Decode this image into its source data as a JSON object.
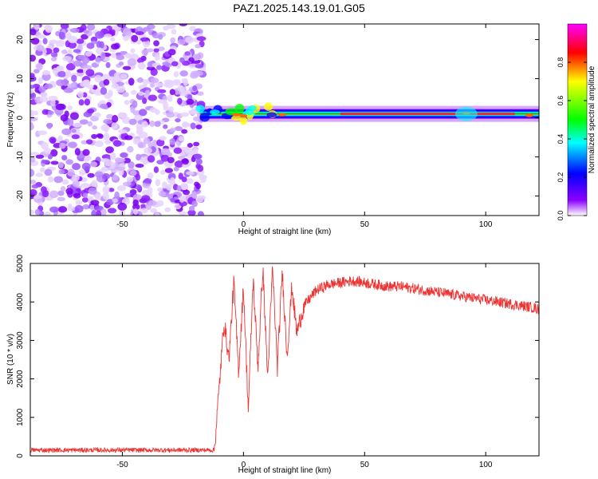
{
  "figure": {
    "title": "PAZ1.2025.143.19.01.G05"
  },
  "chart_data": [
    {
      "type": "heatmap",
      "title": "PAZ1.2025.143.19.01.G05",
      "xlabel": "Height of straight line (km)",
      "ylabel": "Frequency (Hz)",
      "xlim": [
        -88,
        122
      ],
      "ylim": [
        -25,
        24
      ],
      "xticks": [
        -50,
        0,
        50,
        100
      ],
      "yticks": [
        -20,
        -10,
        0,
        10,
        20
      ],
      "grid": false,
      "regions": [
        {
          "name": "noise",
          "x_range": [
            -88,
            -18
          ],
          "y_range": [
            -25,
            24
          ],
          "amplitude": [
            0.0,
            0.25
          ]
        },
        {
          "name": "signal band",
          "x_range": [
            -18,
            122
          ],
          "center_frequency_hz": 1,
          "peak_amplitude": 1.0
        }
      ],
      "colorbar": {
        "label": "Normalized spectral amplitude",
        "range": [
          0.0,
          1.0
        ],
        "ticks": [
          0.0,
          0.2,
          0.4,
          0.6,
          0.8
        ],
        "tick_labels": [
          "0.0",
          "0.2",
          "0.4",
          "0.6",
          "0.8"
        ],
        "colormap": "rainbow"
      }
    },
    {
      "type": "line",
      "xlabel": "Height of straight line (km)",
      "ylabel": "SNR (10 * v/v)",
      "xlim": [
        -88,
        122
      ],
      "ylim": [
        0,
        5000
      ],
      "xticks": [
        -50,
        0,
        50,
        100
      ],
      "yticks": [
        0,
        1000,
        2000,
        3000,
        4000,
        5000
      ],
      "grid": false,
      "color": "#ee3333",
      "x": [
        -88,
        -60,
        -30,
        -12,
        -10,
        -8,
        -6,
        -4,
        -2,
        0,
        2,
        4,
        6,
        8,
        10,
        12,
        14,
        16,
        18,
        20,
        22,
        25,
        30,
        35,
        40,
        45,
        50,
        55,
        60,
        65,
        70,
        75,
        80,
        85,
        90,
        95,
        100,
        105,
        110,
        115,
        120,
        122
      ],
      "y": [
        150,
        150,
        150,
        150,
        1800,
        3500,
        2500,
        4500,
        2200,
        4400,
        1200,
        4600,
        2300,
        4900,
        2000,
        4900,
        2300,
        4800,
        2600,
        4400,
        3200,
        3900,
        4300,
        4450,
        4500,
        4550,
        4500,
        4450,
        4400,
        4400,
        4350,
        4300,
        4250,
        4200,
        4150,
        4100,
        4050,
        4000,
        3950,
        3900,
        3850,
        3800
      ]
    }
  ]
}
